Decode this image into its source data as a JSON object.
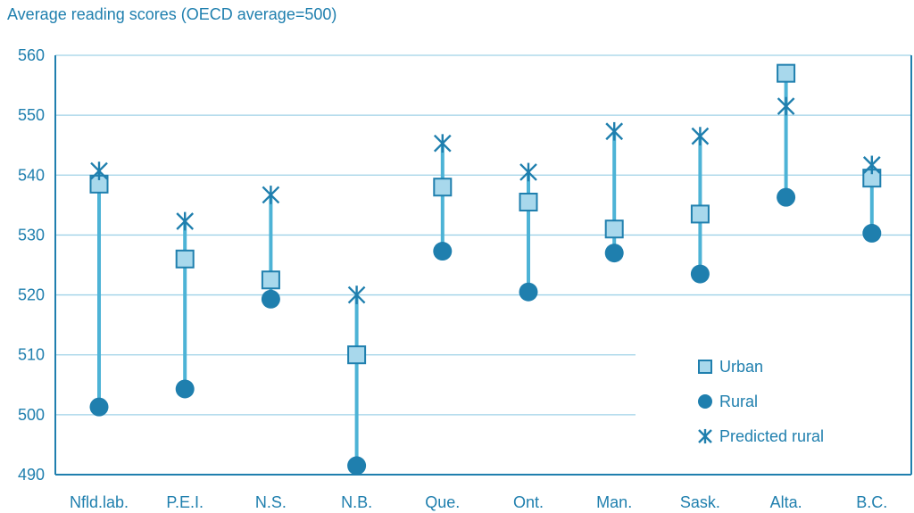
{
  "chart_data": {
    "type": "scatter",
    "title": "Average reading scores (OECD average=500)",
    "categories": [
      "Nfld.lab.",
      "P.E.I.",
      "N.S.",
      "N.B.",
      "Que.",
      "Ont.",
      "Man.",
      "Sask.",
      "Alta.",
      "B.C."
    ],
    "ylim": [
      490,
      560
    ],
    "yticks": [
      490,
      500,
      510,
      520,
      530,
      540,
      550,
      560
    ],
    "grid": true,
    "legend_position": "bottom-right",
    "series": [
      {
        "name": "Urban",
        "marker": "square",
        "values": [
          538.5,
          526,
          522.5,
          510,
          538,
          535.5,
          531,
          533.5,
          557,
          539.5
        ]
      },
      {
        "name": "Rural",
        "marker": "circle",
        "values": [
          501.3,
          504.3,
          519.3,
          491.5,
          527.3,
          520.5,
          527,
          523.5,
          536.3,
          530.3
        ]
      },
      {
        "name": "Predicted rural",
        "marker": "asterisk",
        "values": [
          540.7,
          532.3,
          536.7,
          520,
          545.3,
          540.5,
          547.3,
          546.5,
          551.5,
          541.7
        ]
      }
    ],
    "colors": {
      "text": "#1f7fae",
      "axis": "#1f7fae",
      "grid": "#9fd2e7",
      "range_line": "#4db3d6",
      "urban_fill": "#a8d8ec",
      "urban_stroke": "#1f7fae",
      "rural_fill": "#1f7fae",
      "predicted_stroke": "#1f7fae"
    }
  }
}
